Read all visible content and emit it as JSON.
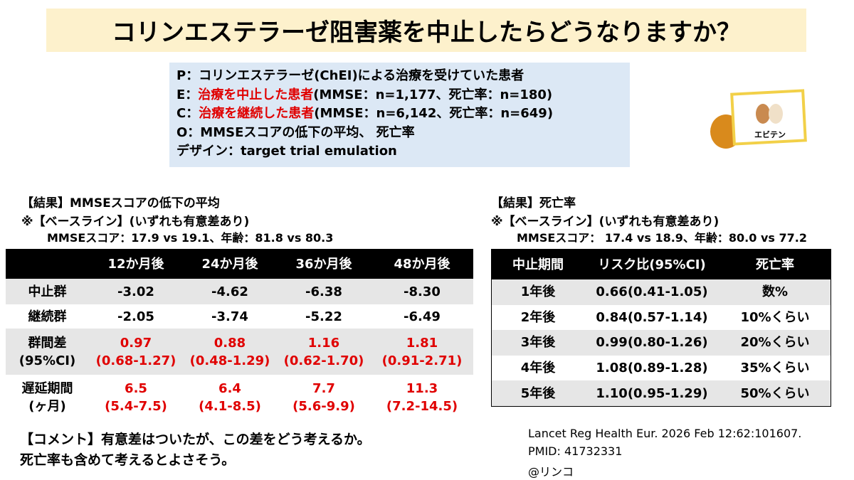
{
  "title": "コリンエステラーゼ阻害薬を中止したらどうなりますか？",
  "pico": [
    [
      "P：",
      "コリンエステラーゼ(ChEI)による治療を受けていた患者"
    ],
    [
      "E：",
      "治療を中止した患者",
      "(MMSE：n=1,177、死亡率：n=180)"
    ],
    [
      "C：",
      "治療を継続した患者",
      "(MMSE：n=6,142、死亡率：n=649)"
    ],
    [
      "O：MMSEスコアの低下の平均、 死亡率"
    ],
    [
      "デザイン：target trial emulation"
    ]
  ],
  "logo": "エビテン",
  "left": {
    "heading": "【結果】MMSEスコアの低下の平均",
    "baseline": "※【ベースライン】(いずれも有意差あり)",
    "baseline_detail": "MMSEスコア：17.9 vs 19.1、年齢：81.8 vs 80.3",
    "table": {
      "columns": [
        "12か月後",
        "24か月後",
        "36か月後",
        "48か月後"
      ],
      "rows": [
        {
          "label": [
            "中止群"
          ],
          "cells": [
            [
              "-3.02"
            ],
            [
              "-4.62"
            ],
            [
              "-6.38"
            ],
            [
              "-8.30"
            ]
          ]
        },
        {
          "label": [
            "継続群"
          ],
          "cells": [
            [
              "-2.05"
            ],
            [
              "-3.74"
            ],
            [
              "-5.22"
            ],
            [
              "-6.49"
            ]
          ]
        },
        {
          "label": [
            "群間差",
            "(95%CI)"
          ],
          "color": "#e00000",
          "cells": [
            [
              "0.97",
              "(0.68-1.27)"
            ],
            [
              "0.88",
              "(0.48-1.29)"
            ],
            [
              "1.16",
              "(0.62-1.70)"
            ],
            [
              "1.81",
              "(0.91-2.71)"
            ]
          ]
        },
        {
          "label": [
            "遅延期間",
            "(ヶ月)"
          ],
          "color": "#e00000",
          "cells": [
            [
              "6.5",
              "(5.4-7.5)"
            ],
            [
              "6.4",
              "(4.1-8.5)"
            ],
            [
              "7.7",
              "(5.6-9.9)"
            ],
            [
              "11.3",
              "(7.2-14.5)"
            ]
          ]
        }
      ]
    }
  },
  "right": {
    "heading": "【結果】死亡率",
    "baseline": "※【ベースライン】(いずれも有意差あり)",
    "baseline_detail": "MMSEスコア： 17.4 vs 18.9、年齢：80.0 vs 77.2",
    "table": {
      "columns": [
        "中止期間",
        "リスク比(95%CI)",
        "死亡率"
      ],
      "rows": [
        [
          "1年後",
          "0.66(0.41-1.05)",
          "数%"
        ],
        [
          "2年後",
          "0.84(0.57-1.14)",
          "10%くらい"
        ],
        [
          "3年後",
          "0.99(0.80-1.26)",
          "20%くらい"
        ],
        [
          "4年後",
          "1.08(0.89-1.28)",
          "35%くらい"
        ],
        [
          "5年後",
          "1.10(0.95-1.29)",
          "50%くらい"
        ]
      ]
    }
  },
  "comment": [
    "【コメント】有意差はついたが、この差をどう考えるか。",
    "死亡率も含めて考えるとよさそう。"
  ],
  "citation": [
    "Lancet Reg Health Eur. 2026 Feb 12:62:101607.",
    "PMID: 41732331",
    "@リンコ"
  ]
}
